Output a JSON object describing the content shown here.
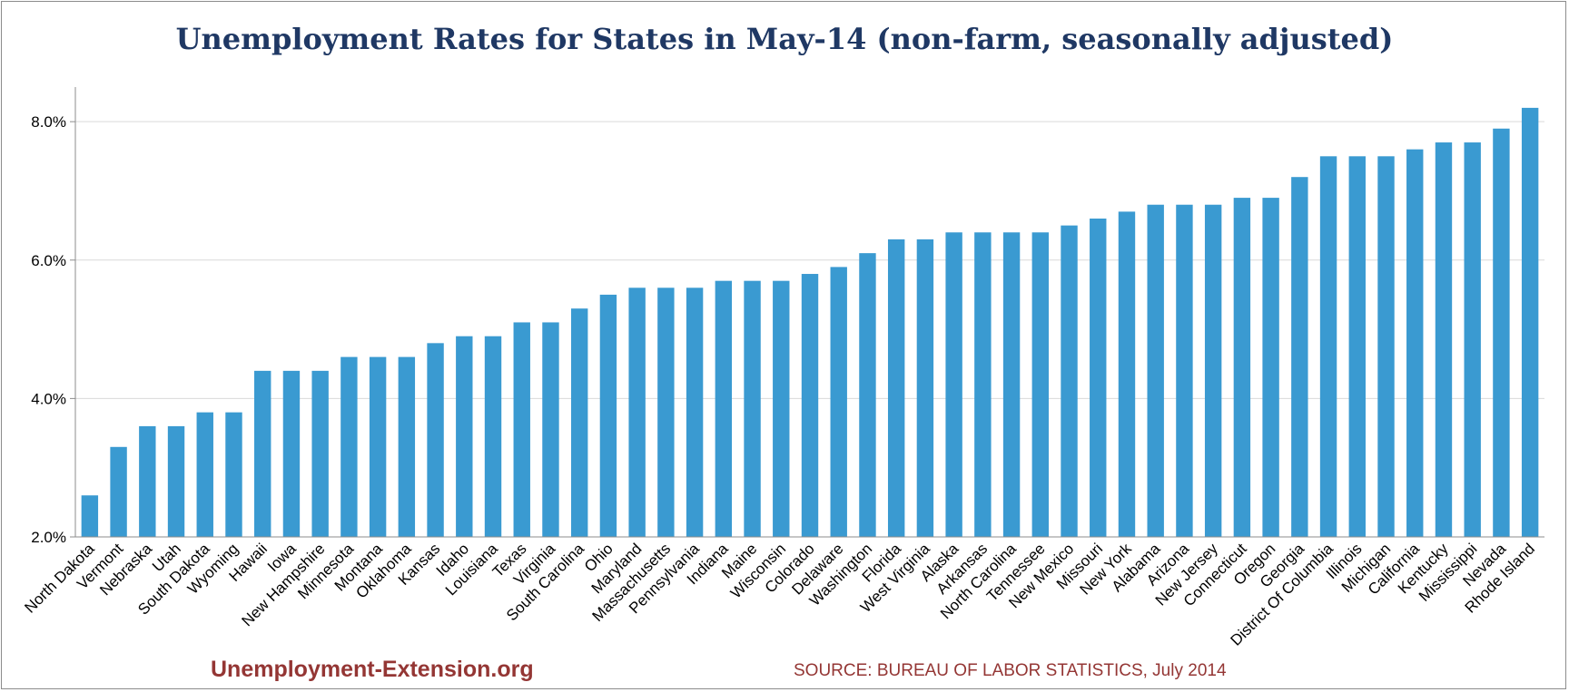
{
  "brand": "Unemployment-Extension.org",
  "source": "SOURCE: BUREAU OF LABOR STATISTICS, July 2014",
  "colors": {
    "bar": "#3a9ad1",
    "title": "#1f3864",
    "source": "#943634",
    "grid": "#d9d9d9",
    "axis": "#8c8c8c"
  },
  "chart_data": {
    "type": "bar",
    "title": "Unemployment Rates for States in May-14 (non-farm, seasonally adjusted)",
    "xlabel": "",
    "ylabel": "",
    "ylim": [
      2.0,
      8.5
    ],
    "yticks": [
      2.0,
      4.0,
      6.0,
      8.0
    ],
    "ytick_labels": [
      "2.0%",
      "4.0%",
      "6.0%",
      "8.0%"
    ],
    "grid": true,
    "legend": "none",
    "categories": [
      "North Dakota",
      "Vermont",
      "Nebraska",
      "Utah",
      "South Dakota",
      "Wyoming",
      "Hawaii",
      "Iowa",
      "New Hampshire",
      "Minnesota",
      "Montana",
      "Oklahoma",
      "Kansas",
      "Idaho",
      "Louisiana",
      "Texas",
      "Virginia",
      "South Carolina",
      "Ohio",
      "Maryland",
      "Massachusetts",
      "Pennsylvania",
      "Indiana",
      "Maine",
      "Wisconsin",
      "Colorado",
      "Delaware",
      "Washington",
      "Florida",
      "West Virginia",
      "Alaska",
      "Arkansas",
      "North Carolina",
      "Tennessee",
      "New Mexico",
      "Missouri",
      "New York",
      "Alabama",
      "Arizona",
      "New Jersey",
      "Connecticut",
      "Oregon",
      "Georgia",
      "District Of Columbia",
      "Illinois",
      "Michigan",
      "California",
      "Kentucky",
      "Mississippi",
      "Nevada",
      "Rhode Island"
    ],
    "values": [
      2.6,
      3.3,
      3.6,
      3.6,
      3.8,
      3.8,
      4.4,
      4.4,
      4.4,
      4.6,
      4.6,
      4.6,
      4.8,
      4.9,
      4.9,
      5.1,
      5.1,
      5.3,
      5.5,
      5.6,
      5.6,
      5.6,
      5.7,
      5.7,
      5.7,
      5.8,
      5.9,
      6.1,
      6.3,
      6.3,
      6.4,
      6.4,
      6.4,
      6.4,
      6.5,
      6.6,
      6.7,
      6.8,
      6.8,
      6.8,
      6.9,
      6.9,
      7.2,
      7.5,
      7.5,
      7.5,
      7.6,
      7.7,
      7.7,
      7.9,
      8.2
    ]
  }
}
